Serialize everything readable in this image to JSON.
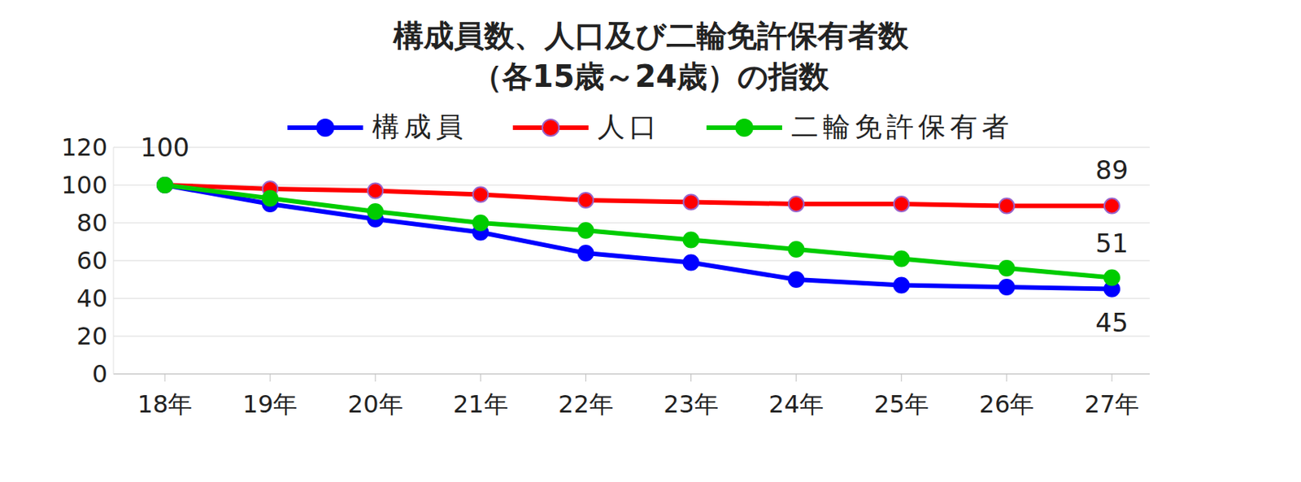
{
  "chart_data": {
    "type": "line",
    "title": [
      "構成員数、人口及び二輪免許保有者数",
      "（各15歳～24歳）の指数"
    ],
    "categories": [
      "18年",
      "19年",
      "20年",
      "21年",
      "22年",
      "23年",
      "24年",
      "25年",
      "26年",
      "27年"
    ],
    "series": [
      {
        "name": "構成員",
        "color": "#0000ff",
        "marker": "circle",
        "values": [
          100,
          90,
          82,
          75,
          64,
          59,
          50,
          47,
          46,
          45
        ]
      },
      {
        "name": "人口",
        "color": "#ff0000",
        "marker": "circle",
        "values": [
          100,
          98,
          97,
          95,
          92,
          91,
          90,
          90,
          89,
          89
        ]
      },
      {
        "name": "二輪免許保有者",
        "color": "#00cc00",
        "marker": "circle",
        "values": [
          100,
          93,
          86,
          80,
          76,
          71,
          66,
          61,
          56,
          51
        ]
      }
    ],
    "ylim": [
      0,
      120
    ],
    "yticks": [
      0,
      20,
      40,
      60,
      80,
      100,
      120
    ],
    "grid": true,
    "legend": "top",
    "annotations": [
      {
        "series": "構成員",
        "category": "18年",
        "text": "100"
      },
      {
        "series": "人口",
        "category": "27年",
        "text": "89"
      },
      {
        "series": "二輪免許保有者",
        "category": "27年",
        "text": "51"
      },
      {
        "series": "構成員",
        "category": "27年",
        "text": "45"
      }
    ]
  }
}
